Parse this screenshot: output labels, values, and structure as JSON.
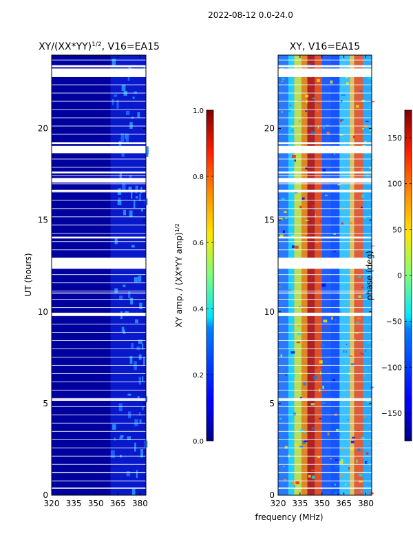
{
  "figure": {
    "suptitle": "2022-08-12 0.0-24.0",
    "xlabel": "frequency (MHz)"
  },
  "chart_data": [
    {
      "type": "heatmap",
      "title_main": "XY/(XX*YY)",
      "title_sup": "1/2",
      "title_tail": ", V16=EA15",
      "ylabel": "UT (hours)",
      "xlim": [
        320,
        384
      ],
      "ylim": [
        0,
        24
      ],
      "x_ticks": [
        320,
        335,
        350,
        365,
        380
      ],
      "y_ticks": [
        0,
        5,
        10,
        15,
        20
      ],
      "colorbar": {
        "label_main": "XY amp. / (XX*YY amp)",
        "label_sup": "1/2",
        "range": [
          0.0,
          1.0
        ],
        "ticks": [
          0.0,
          0.2,
          0.4,
          0.6,
          0.8,
          1.0
        ],
        "tick_labels": [
          "0.0",
          "0.2",
          "0.4",
          "0.6",
          "0.8",
          "1.0"
        ],
        "colormap": "jet"
      },
      "gaps_hours": [
        [
          23.35,
          23.45
        ],
        [
          22.8,
          23.25
        ],
        [
          19.15,
          19.25
        ],
        [
          18.65,
          19.05
        ],
        [
          17.55,
          17.65
        ],
        [
          17.05,
          17.3
        ],
        [
          16.55,
          16.65
        ],
        [
          14.0,
          14.1
        ],
        [
          12.35,
          12.95
        ],
        [
          11.0,
          11.05
        ],
        [
          9.8,
          9.95
        ],
        [
          5.15,
          5.25
        ],
        [
          1.2,
          1.25
        ],
        [
          0.35,
          0.42
        ]
      ]
    },
    {
      "type": "heatmap",
      "title_main": "XY, V16=EA15",
      "ylabel": "",
      "xlim": [
        320,
        384
      ],
      "ylim": [
        0,
        24
      ],
      "x_ticks": [
        320,
        335,
        350,
        365,
        380
      ],
      "y_ticks": [
        0,
        5,
        10,
        15,
        20
      ],
      "colorbar": {
        "label_main": "phase (deg)",
        "range": [
          -180,
          180
        ],
        "ticks": [
          -150,
          -100,
          -50,
          0,
          50,
          100,
          150
        ],
        "tick_labels": [
          "−150",
          "−100",
          "−50",
          "0",
          "50",
          "100",
          "150"
        ],
        "colormap": "jet"
      },
      "gaps_hours": [
        [
          23.35,
          23.45
        ],
        [
          22.8,
          23.25
        ],
        [
          19.15,
          19.25
        ],
        [
          18.65,
          19.05
        ],
        [
          17.55,
          17.65
        ],
        [
          17.05,
          17.3
        ],
        [
          16.55,
          16.65
        ],
        [
          14.0,
          14.1
        ],
        [
          12.35,
          12.95
        ],
        [
          11.0,
          11.05
        ],
        [
          9.8,
          9.95
        ],
        [
          5.15,
          5.25
        ],
        [
          1.2,
          1.25
        ],
        [
          0.35,
          0.42
        ]
      ]
    }
  ],
  "colors": {
    "background": "#ffffff",
    "axis": "#000000",
    "gap": "#ffffff"
  }
}
